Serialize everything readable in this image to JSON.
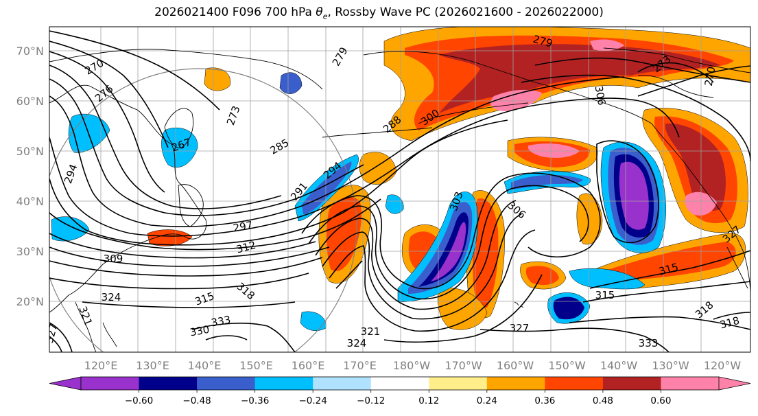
{
  "title_parts": {
    "prefix": "2026021400 F096 700 hPa ",
    "theta": "θ",
    "theta_sub": "e",
    "suffix": ", Rossby Wave PC (2026021600 - 2026022000)"
  },
  "lat_labels": [
    "70°N",
    "60°N",
    "50°N",
    "40°N",
    "30°N",
    "20°N"
  ],
  "lon_labels": [
    "120°E",
    "130°E",
    "140°E",
    "150°E",
    "160°E",
    "170°E",
    "180°W",
    "170°W",
    "160°W",
    "150°W",
    "140°W",
    "130°W",
    "120°W"
  ],
  "contour_labels": [
    "270",
    "276",
    "273",
    "267",
    "279",
    "294",
    "285",
    "288",
    "300",
    "279",
    "273",
    "270",
    "291",
    "294",
    "297",
    "312",
    "309",
    "303",
    "306",
    "306",
    "324",
    "315",
    "318",
    "315",
    "327",
    "330",
    "333",
    "321",
    "324",
    "327",
    "315",
    "333",
    "318",
    "318",
    "321",
    "327"
  ],
  "colorbar": {
    "ticks": [
      "−0.60",
      "−0.48",
      "−0.36",
      "−0.24",
      "−0.12",
      "0.12",
      "0.24",
      "0.36",
      "0.48",
      "0.60"
    ],
    "colors": [
      "#9932cc",
      "#00008b",
      "#3a5fcd",
      "#00bfff",
      "#b0e2ff",
      "#ffffff",
      "#ffee8a",
      "#ffa500",
      "#ff4500",
      "#b22222",
      "#ff82ab"
    ],
    "under_color": "#9932cc",
    "over_color": "#ff82ab"
  },
  "colors": {
    "coast": "#000000",
    "grid": "#a0a0a0",
    "contour": "#000000"
  }
}
